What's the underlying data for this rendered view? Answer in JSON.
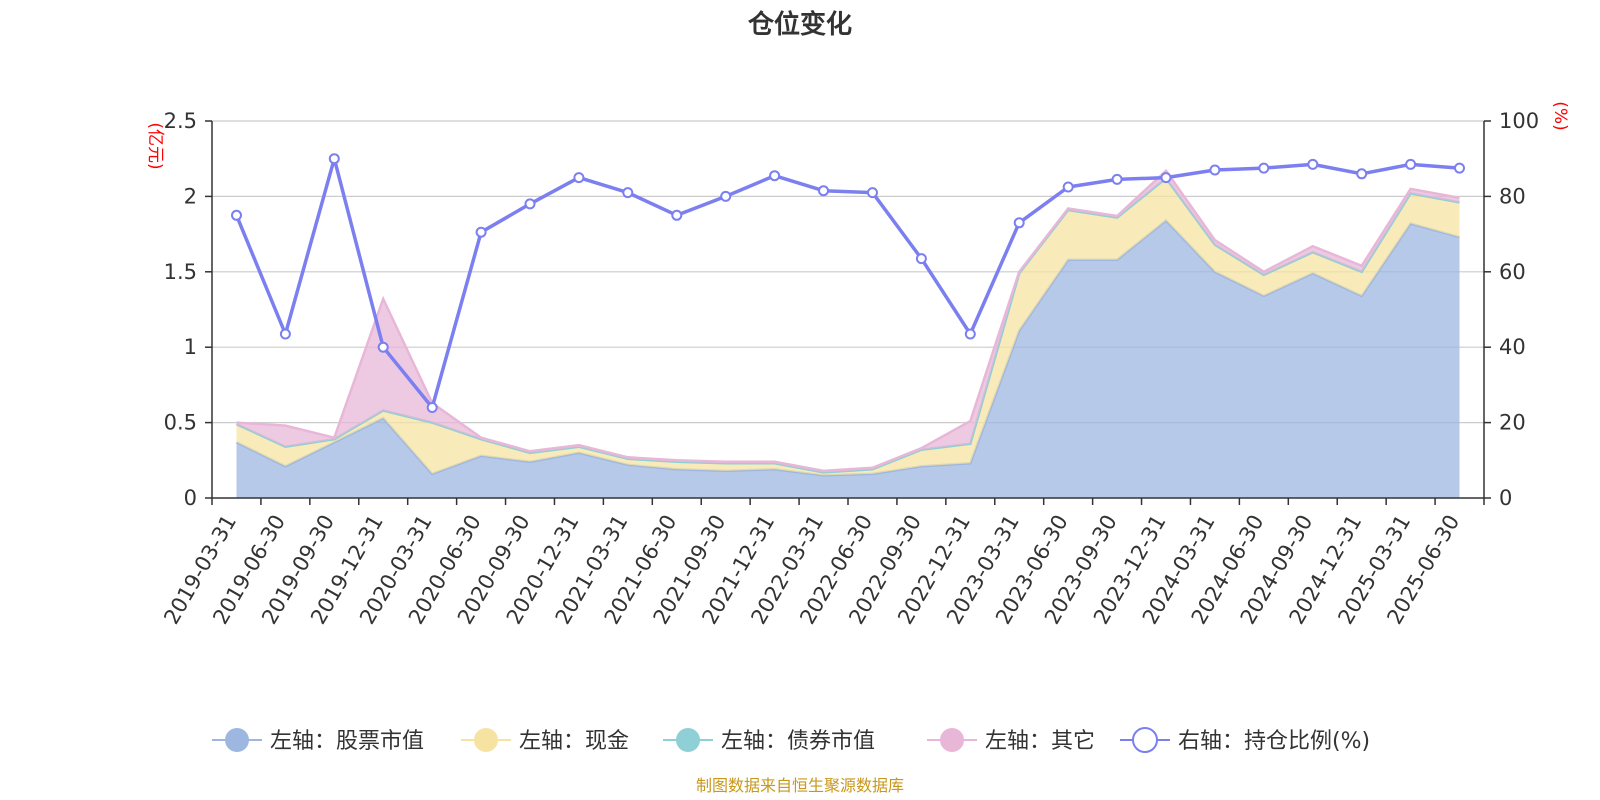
{
  "chart_data": {
    "type": "area",
    "title": "仓位变化",
    "left_unit": "(亿元)",
    "right_unit": "(%)",
    "x": [
      "2019-03-31",
      "2019-06-30",
      "2019-09-30",
      "2019-12-31",
      "2020-03-31",
      "2020-06-30",
      "2020-09-30",
      "2020-12-31",
      "2021-03-31",
      "2021-06-30",
      "2021-09-30",
      "2021-12-31",
      "2022-03-31",
      "2022-06-30",
      "2022-09-30",
      "2022-12-31",
      "2023-03-31",
      "2023-06-30",
      "2023-09-30",
      "2023-12-31",
      "2024-03-31",
      "2024-06-30",
      "2024-09-30",
      "2024-12-31",
      "2025-03-31",
      "2025-06-30"
    ],
    "y_left": {
      "min": 0,
      "max": 2.5,
      "ticks": [
        "0",
        "0.5",
        "1",
        "1.5",
        "2",
        "2.5"
      ]
    },
    "y_right": {
      "min": 0,
      "max": 100,
      "ticks": [
        "0",
        "20",
        "40",
        "60",
        "80",
        "100"
      ]
    },
    "grid": true,
    "legend_position": "bottom",
    "series": [
      {
        "name": "左轴：股票市值",
        "axis": "left",
        "kind": "stack",
        "color": "#9db7e0",
        "values": [
          0.37,
          0.21,
          0.37,
          0.53,
          0.16,
          0.28,
          0.24,
          0.3,
          0.22,
          0.19,
          0.18,
          0.19,
          0.15,
          0.16,
          0.21,
          0.23,
          1.11,
          1.58,
          1.58,
          1.84,
          1.5,
          1.34,
          1.49,
          1.34,
          1.82,
          1.73
        ]
      },
      {
        "name": "左轴：现金",
        "axis": "left",
        "kind": "stack",
        "color": "#f7e3a1",
        "values": [
          0.12,
          0.13,
          0.02,
          0.05,
          0.34,
          0.11,
          0.06,
          0.04,
          0.04,
          0.05,
          0.05,
          0.04,
          0.02,
          0.03,
          0.11,
          0.13,
          0.38,
          0.33,
          0.28,
          0.28,
          0.18,
          0.14,
          0.14,
          0.16,
          0.2,
          0.23
        ]
      },
      {
        "name": "左轴：债券市值",
        "axis": "left",
        "kind": "stack",
        "color": "#8fcfd6",
        "values": [
          0,
          0,
          0,
          0,
          0,
          0,
          0,
          0,
          0,
          0,
          0,
          0,
          0,
          0,
          0,
          0,
          0,
          0,
          0,
          0,
          0,
          0,
          0,
          0,
          0,
          0
        ]
      },
      {
        "name": "左轴：其它",
        "axis": "left",
        "kind": "stack",
        "color": "#e8b7d8",
        "values": [
          0.01,
          0.14,
          0.01,
          0.74,
          0.13,
          0.01,
          0.01,
          0.01,
          0.01,
          0.01,
          0.01,
          0.01,
          0.01,
          0.01,
          0.01,
          0.15,
          0.01,
          0.01,
          0.01,
          0.05,
          0.03,
          0.02,
          0.04,
          0.04,
          0.03,
          0.03
        ]
      },
      {
        "name": "右轴：持仓比例(%)",
        "axis": "right",
        "kind": "line",
        "color": "#7b7ff0",
        "values": [
          75,
          43.5,
          90,
          40,
          24,
          70.5,
          78,
          85,
          81,
          75,
          80,
          85.5,
          81.5,
          81,
          63.5,
          43.5,
          73,
          82.5,
          84.5,
          85,
          87,
          87.5,
          88.5,
          86,
          88.5,
          87.5
        ]
      }
    ]
  },
  "footer": "制图数据来自恒生聚源数据库"
}
